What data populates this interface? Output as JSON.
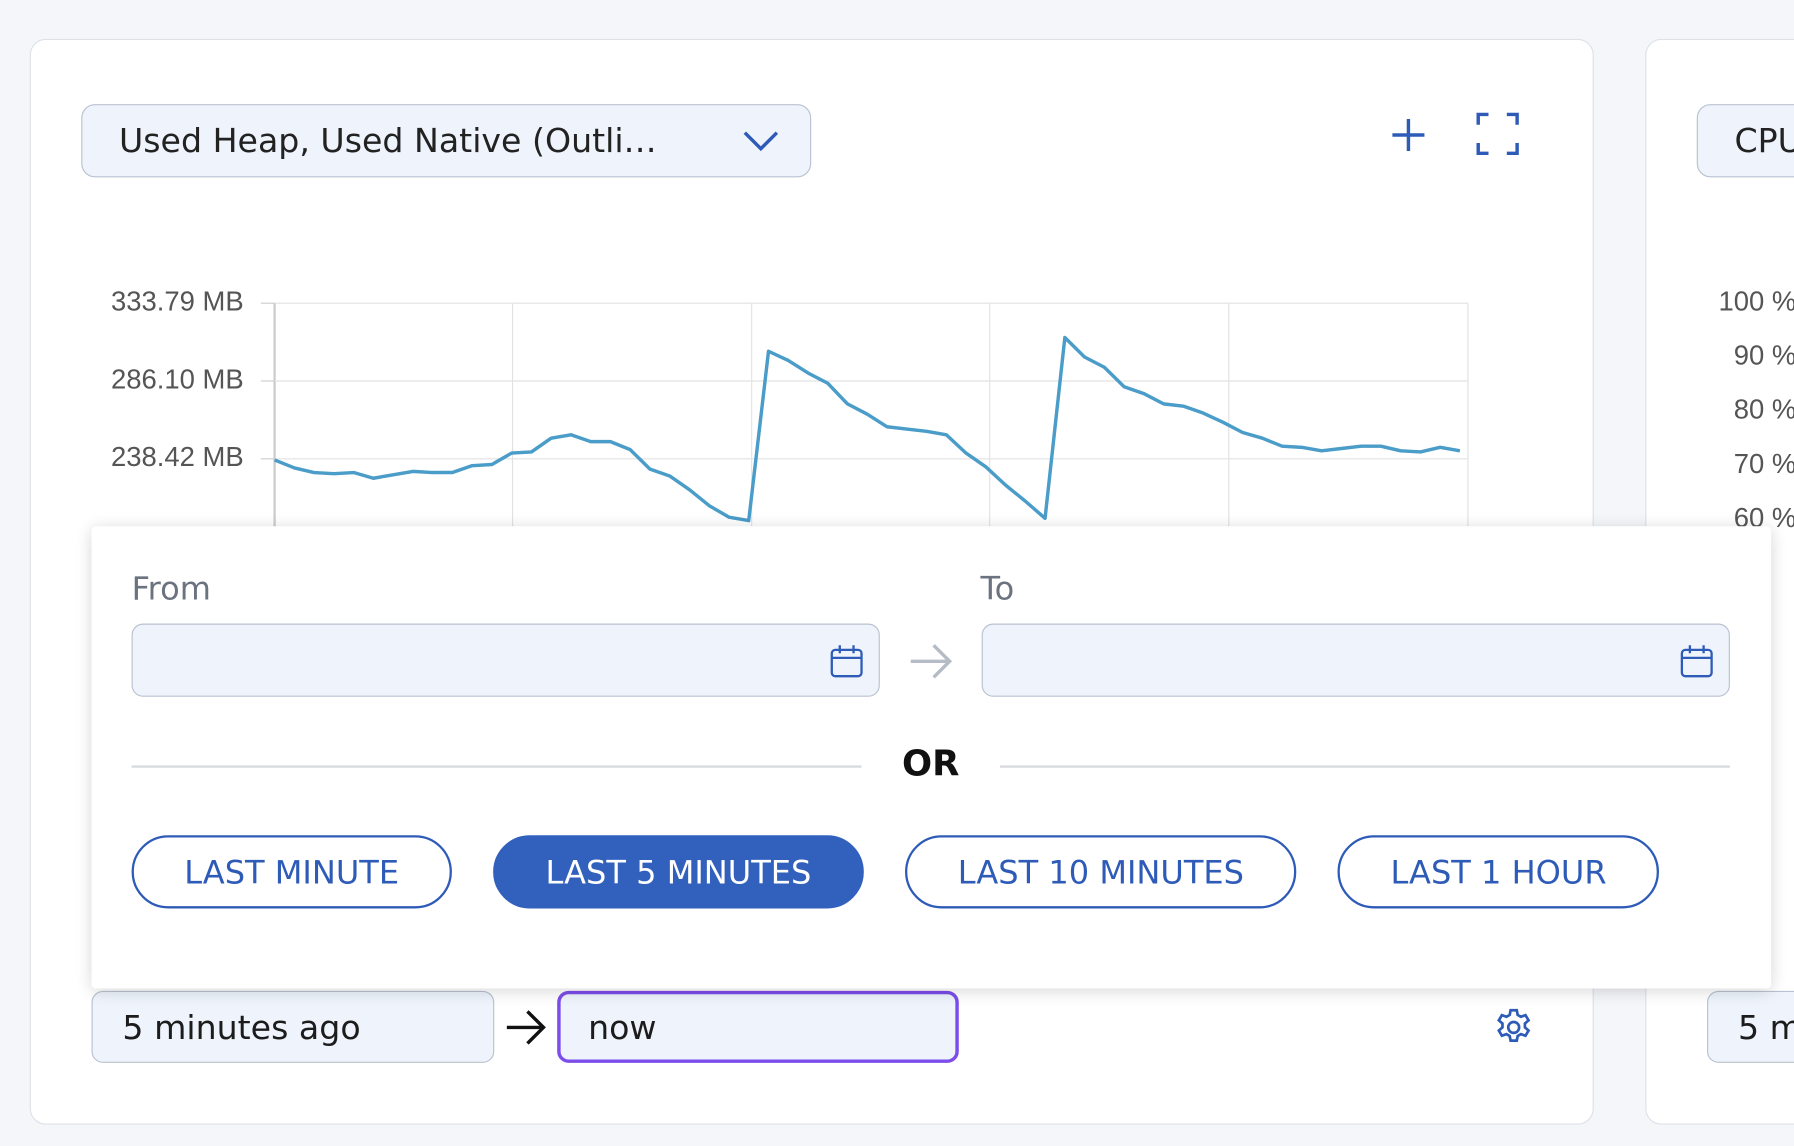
{
  "panel": {
    "metric_select": "Used Heap, Used Native (Outli…"
  },
  "chart_data": {
    "type": "line",
    "series": [
      {
        "color": "#4a9cc9",
        "values": [
          237.72,
          232.81,
          230.01,
          229.31,
          230.01,
          226.5,
          228.6,
          230.71,
          230.01,
          230.01,
          234.21,
          234.92,
          241.93,
          242.63,
          251.04,
          253.15,
          248.94,
          248.94,
          244.03,
          232.11,
          227.9,
          219.49,
          209.67,
          202.66,
          200.55,
          304.34,
          298.73,
          291.01,
          284.7,
          272.08,
          265.77,
          258.06,
          256.65,
          255.25,
          253.15,
          241.93,
          233.51,
          222.29,
          212.48,
          201.96,
          312.75,
          300.83,
          294.52,
          282.6,
          278.39,
          272.08,
          270.68,
          266.47,
          260.86,
          254.55,
          251.04,
          246.14,
          245.43,
          243.33,
          244.73,
          246.14,
          246.14,
          243.33,
          242.63,
          245.43,
          243.33
        ]
      }
    ],
    "ylim": [
      0,
      333.79
    ],
    "yticks": [
      {
        "value": 333.79,
        "label": "333.79 MB"
      },
      {
        "value": 286.1,
        "label": "286.10 MB"
      },
      {
        "value": 238.42,
        "label": "238.42 MB"
      }
    ],
    "grid": true
  },
  "time_picker": {
    "from_label": "From",
    "to_label": "To",
    "separator": "OR",
    "presets": [
      "LAST MINUTE",
      "LAST 5 MINUTES",
      "LAST 10 MINUTES",
      "LAST 1 HOUR"
    ],
    "active_preset": 1
  },
  "range": {
    "from": "5 minutes ago",
    "to": "now"
  },
  "side_panel": {
    "metric_select": "CPU",
    "yticks": [
      "100 %",
      "90 %",
      "80 %",
      "70 %",
      "60 %"
    ],
    "range_from": "5 m"
  }
}
